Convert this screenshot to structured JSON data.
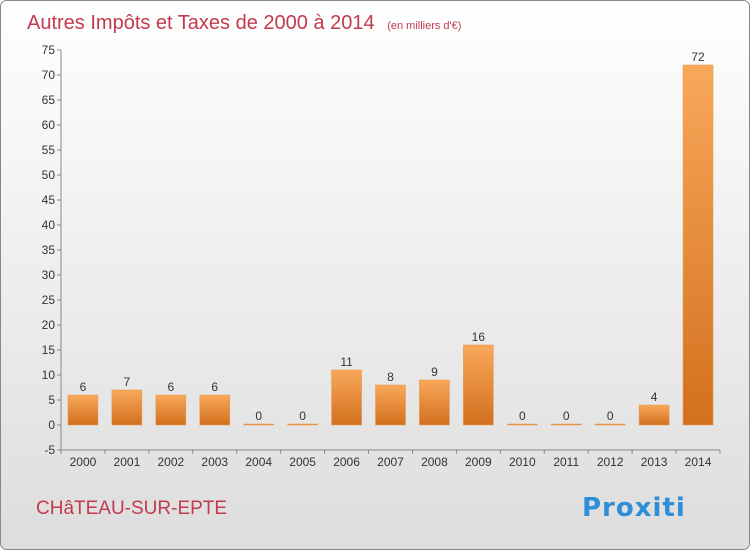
{
  "chart_data": {
    "type": "bar",
    "title": "Autres Impôts et Taxes de 2000 à 2014",
    "subtitle": "(en milliers d'€)",
    "categories": [
      "2000",
      "2001",
      "2002",
      "2003",
      "2004",
      "2005",
      "2006",
      "2007",
      "2008",
      "2009",
      "2010",
      "2011",
      "2012",
      "2013",
      "2014"
    ],
    "values": [
      6,
      7,
      6,
      6,
      0,
      0,
      11,
      8,
      9,
      16,
      0,
      0,
      0,
      4,
      72
    ],
    "ylim": [
      -5,
      75
    ],
    "yticks": [
      -5,
      0,
      5,
      10,
      15,
      20,
      25,
      30,
      35,
      40,
      45,
      50,
      55,
      60,
      65,
      70,
      75
    ],
    "grid": "none",
    "colors": {
      "bar_light": "#F9A85A",
      "bar_dark": "#D2701E",
      "title": "#C23A4E",
      "place": "#C23A4E",
      "background_top": "#FFFFFF",
      "background_bottom": "#DDDDDD",
      "border": "#888888"
    }
  },
  "footer": {
    "place_name": "CHâTEAU-SUR-EPTE",
    "logo_text": "Proxiti"
  }
}
